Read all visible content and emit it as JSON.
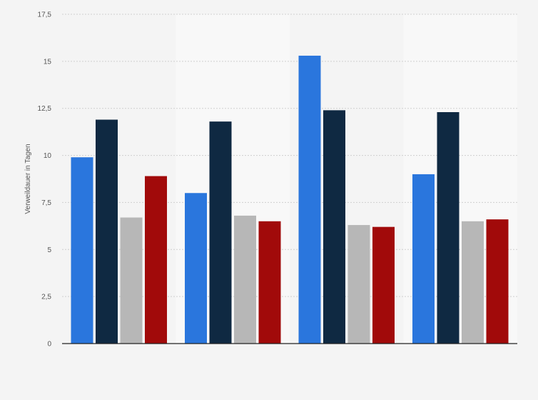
{
  "chart_data": {
    "type": "bar",
    "ylabel": "Verweildauer in Tagen",
    "xlabel": "",
    "ylim": [
      0,
      17.5
    ],
    "yticks": [
      0,
      2.5,
      5,
      7.5,
      10,
      12.5,
      15,
      17.5
    ],
    "ytick_labels": [
      "0",
      "2,5",
      "5",
      "7,5",
      "10",
      "12,5",
      "15",
      "17,5"
    ],
    "categories": [
      "",
      "",
      "",
      ""
    ],
    "series": [
      {
        "color": "#2a76dd",
        "values": [
          9.9,
          8.0,
          15.3,
          9.0
        ]
      },
      {
        "color": "#0f2942",
        "values": [
          11.9,
          11.8,
          12.4,
          12.3
        ]
      },
      {
        "color": "#b7b7b7",
        "values": [
          6.7,
          6.8,
          6.3,
          6.5
        ]
      },
      {
        "color": "#a10a0a",
        "values": [
          8.9,
          6.5,
          6.2,
          6.6
        ]
      }
    ],
    "grid": true,
    "alternating_band_color": "#f8f8f8"
  }
}
